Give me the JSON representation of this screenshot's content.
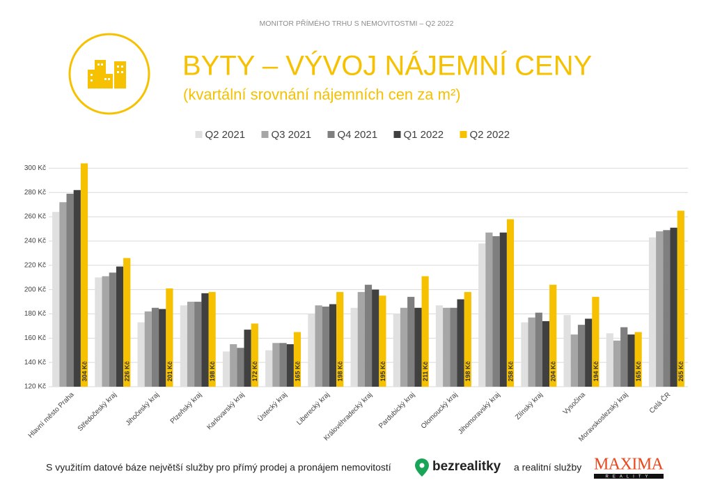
{
  "header": "MONITOR PŘÍMÉHO TRHU S NEMOVITOSTMI – Q2 2022",
  "chart_data": {
    "type": "bar",
    "title": "BYTY – VÝVOJ NÁJEMNÍ CENY",
    "subtitle": "(kvartální srovnání nájemních cen za m²)",
    "categories": [
      "Hlavní město Praha",
      "Středočeský kraj",
      "Jihočeský kraj",
      "Plzeňský kraj",
      "Karlovarský kraj",
      "Ústecký kraj",
      "Liberecký kraj",
      "Královéhradecký kraj",
      "Pardubický kraj",
      "Olomoucký kraj",
      "Jihomoravský kraj",
      "Zlínský kraj",
      "Vysočina",
      "Moravskoslezský kraj",
      "Celá ČR"
    ],
    "series": [
      {
        "name": "Q2 2021",
        "color": "#e0e0e0",
        "values": [
          264,
          210,
          173,
          187,
          149,
          150,
          180,
          185,
          180,
          187,
          238,
          173,
          179,
          164,
          243
        ]
      },
      {
        "name": "Q3 2021",
        "color": "#a6a6a6",
        "values": [
          272,
          211,
          182,
          190,
          155,
          156,
          187,
          198,
          185,
          185,
          247,
          177,
          163,
          158,
          248
        ]
      },
      {
        "name": "Q4 2021",
        "color": "#7f7f7f",
        "values": [
          279,
          214,
          185,
          190,
          152,
          156,
          186,
          204,
          194,
          185,
          244,
          181,
          171,
          169,
          249
        ]
      },
      {
        "name": "Q1 2022",
        "color": "#404040",
        "values": [
          282,
          219,
          184,
          197,
          167,
          155,
          188,
          200,
          185,
          192,
          247,
          174,
          176,
          163,
          251
        ]
      },
      {
        "name": "Q2 2022",
        "color": "#f5c100",
        "values": [
          304,
          226,
          201,
          198,
          172,
          165,
          198,
          195,
          211,
          198,
          258,
          204,
          194,
          165,
          265
        ],
        "value_labels": [
          "304 Kč",
          "226 Kč",
          "201 Kč",
          "198 Kč",
          "172 Kč",
          "165 Kč",
          "198 Kč",
          "195 Kč",
          "211 Kč",
          "198 Kč",
          "258 Kč",
          "204 Kč",
          "194 Kč",
          "165 Kč",
          "265 Kč"
        ]
      }
    ],
    "ylim": [
      120,
      310
    ],
    "yticks": [
      {
        "value": 120,
        "label": "120 Kč"
      },
      {
        "value": 140,
        "label": "140 Kč"
      },
      {
        "value": 160,
        "label": "160 Kč"
      },
      {
        "value": 180,
        "label": "180 Kč"
      },
      {
        "value": 200,
        "label": "200 Kč"
      },
      {
        "value": 220,
        "label": "220 Kč"
      },
      {
        "value": 240,
        "label": "240 Kč"
      },
      {
        "value": 260,
        "label": "260 Kč"
      },
      {
        "value": 280,
        "label": "280 Kč"
      },
      {
        "value": 300,
        "label": "300 Kč"
      }
    ],
    "grid": true,
    "legend": "top"
  },
  "footer": {
    "text": "S využitím datové báze největší služby pro přímý prodej a pronájem nemovitostí",
    "logo1": "bezrealitky",
    "text2": "a realitní služby",
    "logo2": "MAXIMA",
    "logo2_sub": "REALITY"
  }
}
